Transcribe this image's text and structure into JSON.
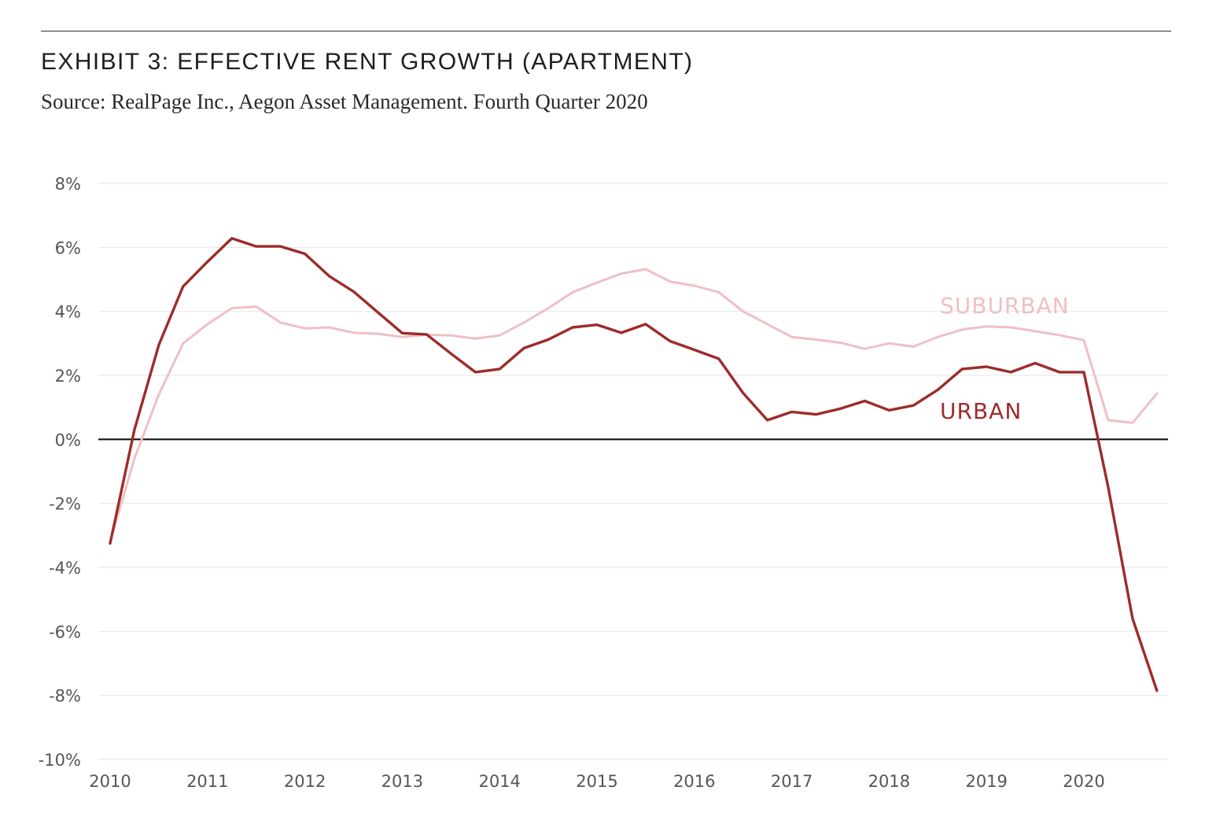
{
  "header": {
    "title": "EXHIBIT 3: EFFECTIVE RENT GROWTH (APARTMENT)",
    "subtitle": "Source: RealPage Inc., Aegon Asset Management. Fourth Quarter 2020"
  },
  "colors": {
    "urban": "#9e2b2b",
    "suburban": "#efbfc6",
    "zero_line": "#111111",
    "gridline": "#e6e6e6"
  },
  "chart_data": {
    "type": "line",
    "title": "EXHIBIT 3: EFFECTIVE RENT GROWTH (APARTMENT)",
    "xlabel": "",
    "ylabel": "",
    "ylim": [
      -10,
      8
    ],
    "xlim": [
      2010,
      2020.95
    ],
    "grid": true,
    "y_ticks": [
      8,
      6,
      4,
      2,
      0,
      -2,
      -4,
      -6,
      -8,
      -10
    ],
    "y_tick_labels": [
      "8%",
      "6%",
      "4%",
      "2%",
      "0%",
      "-2%",
      "-4%",
      "-6%",
      "-8%",
      "-10%"
    ],
    "x_ticks": [
      2010,
      2011,
      2012,
      2013,
      2014,
      2015,
      2016,
      2017,
      2018,
      2019,
      2020
    ],
    "x_tick_labels": [
      "2010",
      "2011",
      "2012",
      "2013",
      "2014",
      "2015",
      "2016",
      "2017",
      "2018",
      "2019",
      "2020"
    ],
    "x": [
      2010.0,
      2010.25,
      2010.5,
      2010.75,
      2011.0,
      2011.25,
      2011.5,
      2011.75,
      2012.0,
      2012.25,
      2012.5,
      2012.75,
      2013.0,
      2013.25,
      2013.5,
      2013.75,
      2014.0,
      2014.25,
      2014.5,
      2014.75,
      2015.0,
      2015.25,
      2015.5,
      2015.75,
      2016.0,
      2016.25,
      2016.5,
      2016.75,
      2017.0,
      2017.25,
      2017.5,
      2017.75,
      2018.0,
      2018.25,
      2018.5,
      2018.75,
      2019.0,
      2019.25,
      2019.5,
      2019.75,
      2020.0,
      2020.25,
      2020.5,
      2020.75
    ],
    "series": [
      {
        "name": "SUBURBAN",
        "values": [
          -3.2,
          -0.6,
          1.4,
          3.0,
          3.6,
          4.1,
          4.15,
          3.65,
          3.47,
          3.5,
          3.33,
          3.3,
          3.2,
          3.27,
          3.25,
          3.15,
          3.25,
          3.65,
          4.1,
          4.6,
          4.9,
          5.18,
          5.32,
          4.93,
          4.8,
          4.6,
          4.0,
          3.6,
          3.2,
          3.12,
          3.02,
          2.83,
          3.0,
          2.9,
          3.2,
          3.43,
          3.53,
          3.5,
          3.38,
          3.26,
          3.1,
          0.6,
          0.52,
          1.43
        ]
      },
      {
        "name": "URBAN",
        "values": [
          -3.25,
          0.3,
          2.95,
          4.78,
          5.55,
          6.28,
          6.03,
          6.03,
          5.8,
          5.1,
          4.62,
          3.97,
          3.32,
          3.28,
          2.68,
          2.1,
          2.2,
          2.85,
          3.12,
          3.5,
          3.58,
          3.33,
          3.6,
          3.07,
          2.8,
          2.52,
          1.45,
          0.6,
          0.86,
          0.78,
          0.96,
          1.2,
          0.91,
          1.06,
          1.55,
          2.2,
          2.27,
          2.1,
          2.38,
          2.1,
          2.1,
          -1.5,
          -5.6,
          -7.85
        ]
      }
    ],
    "annotations": [
      "SUBURBAN",
      "URBAN"
    ]
  }
}
